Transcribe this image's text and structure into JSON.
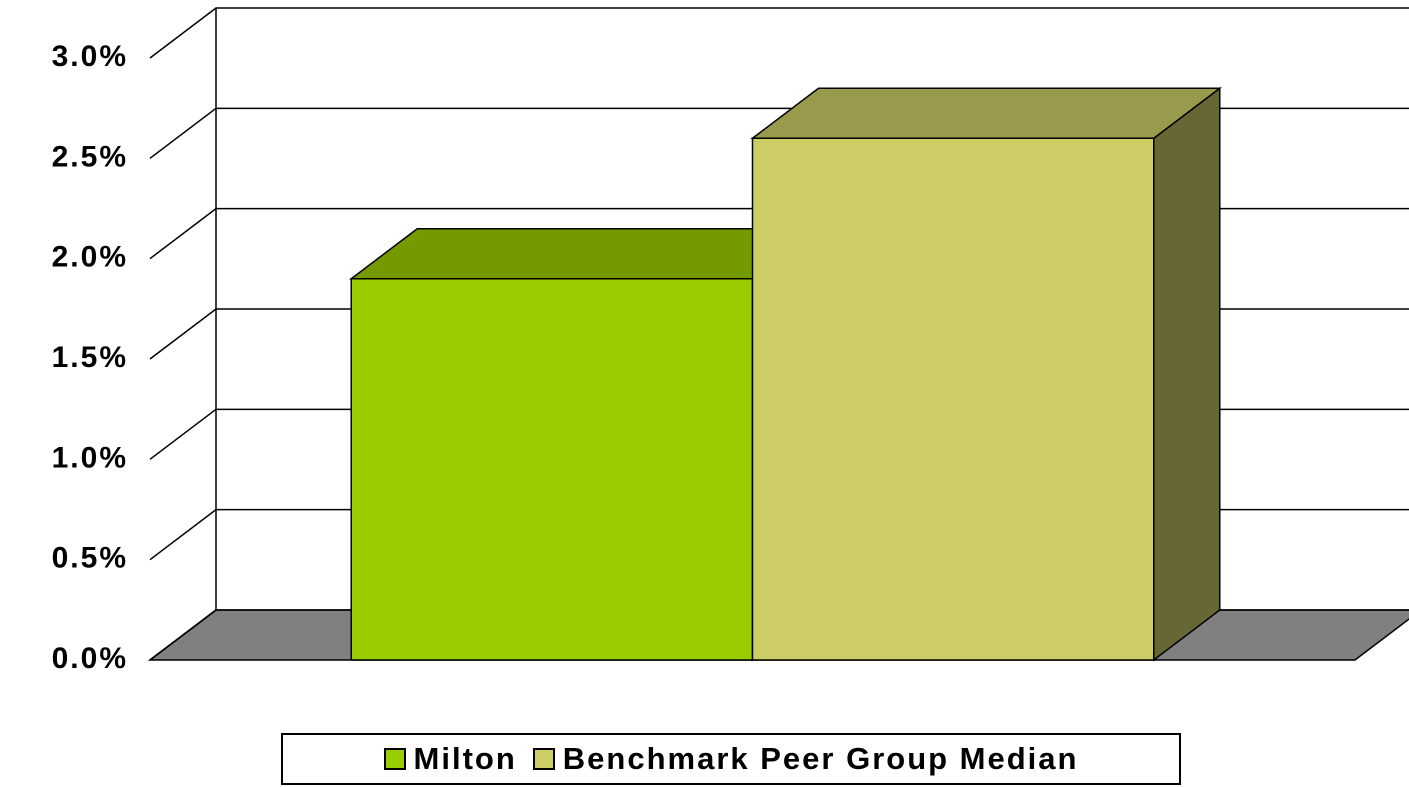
{
  "chart_data": {
    "type": "bar3d",
    "categories": [
      null
    ],
    "series": [
      {
        "name": "Milton",
        "color": "#9acd00",
        "values": [
          1.9
        ]
      },
      {
        "name": "Benchmark Peer Group Median",
        "color": "#cdcd66",
        "values": [
          2.6
        ]
      }
    ],
    "ylim": [
      0,
      3
    ],
    "yticks": [
      {
        "value": 0,
        "label": "0.0%"
      },
      {
        "value": 0.5,
        "label": "0.5%"
      },
      {
        "value": 1,
        "label": "1.0%"
      },
      {
        "value": 1.5,
        "label": "1.5%"
      },
      {
        "value": 2,
        "label": "2.0%"
      },
      {
        "value": 2.5,
        "label": "2.5%"
      },
      {
        "value": 3,
        "label": "3.0%"
      }
    ],
    "grid": true,
    "legend": "bottom"
  }
}
